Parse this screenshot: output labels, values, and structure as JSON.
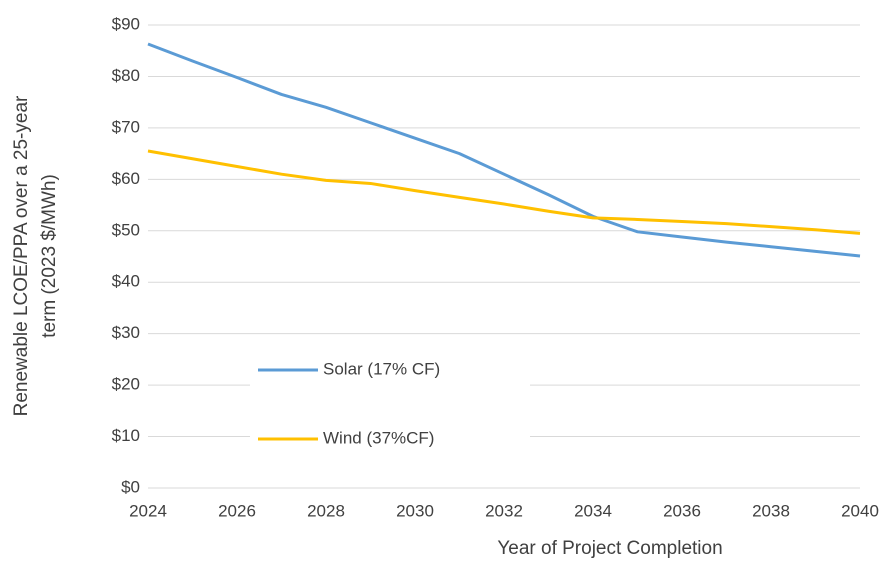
{
  "chart_data": {
    "type": "line",
    "ylabel": [
      "Renewable LCOE/PPA over a 25-year",
      "term (2023 $/MWh)"
    ],
    "xlabel": "Year of Project Completion",
    "x": [
      2024,
      2025,
      2026,
      2027,
      2028,
      2029,
      2030,
      2031,
      2032,
      2033,
      2034,
      2035,
      2036,
      2037,
      2038,
      2039,
      2040
    ],
    "series": [
      {
        "name": "Solar (17% CF)",
        "color": "#5b9bd5",
        "values": [
          86.3,
          83,
          79.8,
          76.5,
          74,
          71,
          68,
          65,
          61,
          57,
          52.8,
          49.8,
          48.8,
          47.8,
          46.9,
          46,
          45.1
        ]
      },
      {
        "name": "Wind (37%CF)",
        "color": "#ffc000",
        "values": [
          65.5,
          64,
          62.5,
          61,
          59.8,
          59.2,
          57.8,
          56.5,
          55.2,
          53.8,
          52.5,
          52.2,
          51.8,
          51.4,
          50.8,
          50.2,
          49.5
        ]
      }
    ],
    "xlim": [
      2024,
      2040
    ],
    "xticks": [
      2024,
      2026,
      2028,
      2030,
      2032,
      2034,
      2036,
      2038,
      2040
    ],
    "ylim": [
      0,
      90
    ],
    "yticks": [
      {
        "value": 0,
        "label": "$0"
      },
      {
        "value": 10,
        "label": "$10"
      },
      {
        "value": 20,
        "label": "$20"
      },
      {
        "value": 30,
        "label": "$30"
      },
      {
        "value": 40,
        "label": "$40"
      },
      {
        "value": 50,
        "label": "$50"
      },
      {
        "value": 60,
        "label": "$60"
      },
      {
        "value": 70,
        "label": "$70"
      },
      {
        "value": 80,
        "label": "$80"
      },
      {
        "value": 90,
        "label": "$90"
      }
    ],
    "grid": true,
    "legend": "left"
  }
}
